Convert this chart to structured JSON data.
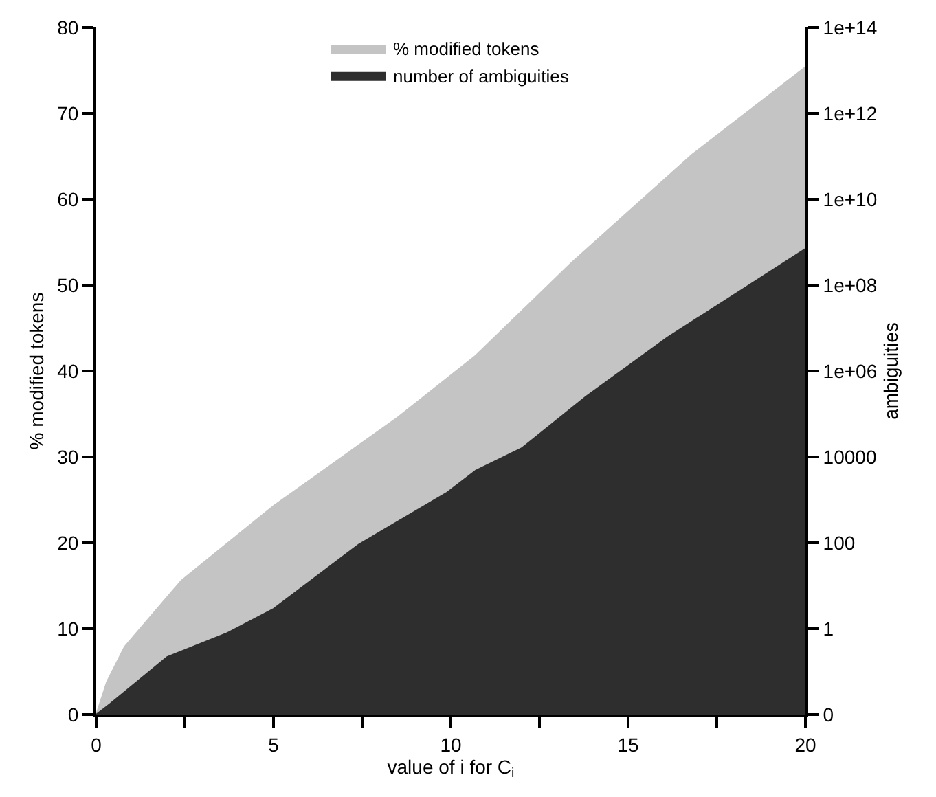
{
  "chart_data": {
    "type": "area",
    "xlabel": "value of i for C$_{i}$",
    "ylabel": "% modified tokens",
    "y2label": "ambiguities",
    "series": [
      {
        "name": "% modified tokens",
        "color": "#c4c4c4",
        "x": [
          0,
          0.3,
          0.8,
          2.4,
          5.0,
          8.5,
          10.7,
          13.4,
          16.8,
          20
        ],
        "values": [
          0,
          3.8,
          7.9,
          15.6,
          24.3,
          34.6,
          41.8,
          52.6,
          65.2,
          75.4
        ]
      },
      {
        "name": "number of ambiguities",
        "color": "#2e2e2e",
        "axis": "y2",
        "x": [
          0,
          0.4,
          2.0,
          3.7,
          5.0,
          7.4,
          9.9,
          10.7,
          12.0,
          13.2,
          13.8,
          16.1,
          20
        ],
        "values": [
          0.01,
          0.018,
          0.22,
          0.8,
          2.9,
          91,
          1500,
          4800,
          16000,
          100000,
          250000,
          6000000,
          700000000
        ]
      }
    ],
    "xlim": [
      0,
      20
    ],
    "xticks": [
      0,
      {
        "value": 2.5,
        "label": null
      },
      5,
      {
        "value": 7.5,
        "label": null
      },
      10,
      {
        "value": 12.5,
        "label": null
      },
      15,
      {
        "value": 17.5,
        "label": null
      },
      20
    ],
    "ylim": [
      0,
      80
    ],
    "yticks": [
      0,
      10,
      20,
      30,
      40,
      50,
      60,
      70,
      80
    ],
    "y2lim": [
      0.01,
      100000000000000
    ],
    "log": "y2",
    "y2ticks": [
      {
        "value": 0.01,
        "label": "0"
      },
      1,
      100,
      10000,
      {
        "value": 1000000,
        "label": "1e+06"
      },
      {
        "value": 100000000,
        "label": "1e+08"
      },
      {
        "value": 10000000000,
        "label": "1e+10"
      },
      {
        "value": 1000000000000,
        "label": "1e+12"
      },
      {
        "value": 100000000000000,
        "label": "1e+14"
      }
    ],
    "legend": "top",
    "marker": "none",
    "line_style": "solid"
  }
}
